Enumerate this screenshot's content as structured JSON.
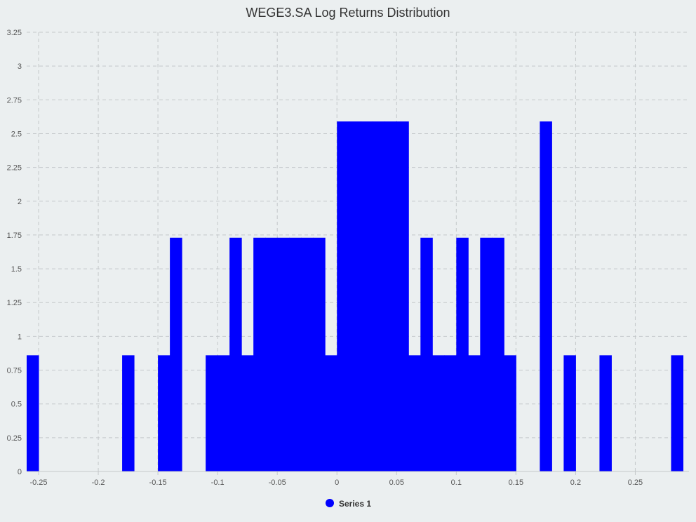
{
  "chart_data": {
    "type": "bar",
    "title": "WEGE3.SA Log Returns Distribution",
    "xlabel": "",
    "ylabel": "",
    "xlim": [
      -0.26,
      0.295
    ],
    "ylim": [
      0,
      3.25
    ],
    "bin_width": 0.01,
    "x_ticks": [
      -0.25,
      -0.2,
      -0.15,
      -0.1,
      -0.05,
      0,
      0.05,
      0.1,
      0.15,
      0.2,
      0.25
    ],
    "x_tick_labels": [
      "-0.25",
      "-0.2",
      "-0.15",
      "-0.1",
      "-0.05",
      "0",
      "0.05",
      "0.1",
      "0.15",
      "0.2",
      "0.25"
    ],
    "y_ticks": [
      0,
      0.25,
      0.5,
      0.75,
      1,
      1.25,
      1.5,
      1.75,
      2,
      2.25,
      2.5,
      2.75,
      3,
      3.25
    ],
    "y_tick_labels": [
      "0",
      "0.25",
      "0.5",
      "0.75",
      "1",
      "1.25",
      "1.5",
      "1.75",
      "2",
      "2.25",
      "2.5",
      "2.75",
      "3",
      "3.25"
    ],
    "grid": true,
    "legend_position": "bottom-center",
    "series": [
      {
        "name": "Series 1",
        "color": "#0000ff",
        "bins": [
          {
            "x": -0.26,
            "y": 0.86
          },
          {
            "x": -0.18,
            "y": 0.86
          },
          {
            "x": -0.15,
            "y": 0.86
          },
          {
            "x": -0.14,
            "y": 1.73
          },
          {
            "x": -0.11,
            "y": 0.86
          },
          {
            "x": -0.1,
            "y": 0.86
          },
          {
            "x": -0.09,
            "y": 1.73
          },
          {
            "x": -0.08,
            "y": 0.86
          },
          {
            "x": -0.07,
            "y": 1.73
          },
          {
            "x": -0.06,
            "y": 1.73
          },
          {
            "x": -0.05,
            "y": 1.73
          },
          {
            "x": -0.04,
            "y": 1.73
          },
          {
            "x": -0.03,
            "y": 1.73
          },
          {
            "x": -0.02,
            "y": 1.73
          },
          {
            "x": -0.01,
            "y": 0.86
          },
          {
            "x": 0.0,
            "y": 2.59
          },
          {
            "x": 0.01,
            "y": 2.59
          },
          {
            "x": 0.02,
            "y": 2.59
          },
          {
            "x": 0.03,
            "y": 2.59
          },
          {
            "x": 0.04,
            "y": 2.59
          },
          {
            "x": 0.05,
            "y": 2.59
          },
          {
            "x": 0.06,
            "y": 0.86
          },
          {
            "x": 0.07,
            "y": 1.73
          },
          {
            "x": 0.08,
            "y": 0.86
          },
          {
            "x": 0.09,
            "y": 0.86
          },
          {
            "x": 0.1,
            "y": 1.73
          },
          {
            "x": 0.11,
            "y": 0.86
          },
          {
            "x": 0.12,
            "y": 1.73
          },
          {
            "x": 0.13,
            "y": 1.73
          },
          {
            "x": 0.14,
            "y": 0.86
          },
          {
            "x": 0.17,
            "y": 2.59
          },
          {
            "x": 0.19,
            "y": 0.86
          },
          {
            "x": 0.22,
            "y": 0.86
          },
          {
            "x": 0.28,
            "y": 0.86
          }
        ]
      }
    ]
  }
}
